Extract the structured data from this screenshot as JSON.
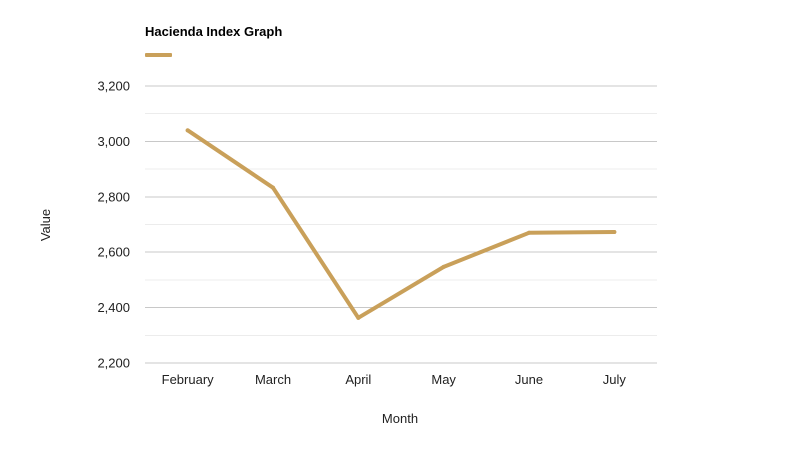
{
  "chart_data": {
    "type": "line",
    "title": "Hacienda Index Graph",
    "xlabel": "Month",
    "ylabel": "Value",
    "categories": [
      "February",
      "March",
      "April",
      "May",
      "June",
      "July"
    ],
    "series": [
      {
        "values": [
          3040,
          2833,
          2363,
          2547,
          2670,
          2673
        ],
        "color": "#c9a05a"
      }
    ],
    "ylim": [
      2200,
      3200
    ],
    "yticks": [
      2200,
      2400,
      2600,
      2800,
      3000,
      3200
    ],
    "ytick_labels": [
      "2,200",
      "2,400",
      "2,600",
      "2,800",
      "3,000",
      "3,200"
    ],
    "grid": true,
    "legend": "top-left"
  }
}
